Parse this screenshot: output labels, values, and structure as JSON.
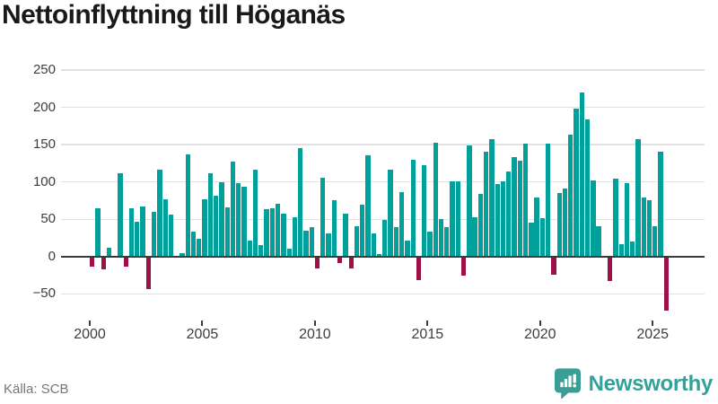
{
  "title": "Nettoinflyttning till Höganäs",
  "source": "Källa: SCB",
  "brand": {
    "name": "Newsworthy",
    "color": "#33a09a"
  },
  "chart_data": {
    "type": "bar",
    "title": "Nettoinflyttning till Höganäs",
    "xlabel": "",
    "ylabel": "",
    "grid": true,
    "legend": "none",
    "y_ticks": [
      250,
      200,
      150,
      100,
      50,
      0,
      -50
    ],
    "ylim": [
      -85,
      260
    ],
    "x_tick_labels": [
      "2000",
      "2005",
      "2010",
      "2015",
      "2020",
      "2025"
    ],
    "period_frequency": "quarterly",
    "start_period": "2000 Q1",
    "end_period": "2025 Q3",
    "palette": {
      "positive": "#00a19a",
      "negative": "#9e1048",
      "zero_axis": "#3a3a3a",
      "gridline": "#e1e1e1",
      "tick_label": "#3d3d3d"
    },
    "values": [
      -13,
      65,
      -17,
      12,
      0,
      112,
      -14,
      65,
      47,
      67,
      -43,
      60,
      117,
      77,
      56,
      0,
      5,
      137,
      34,
      24,
      77,
      112,
      82,
      100,
      66,
      127,
      99,
      94,
      22,
      116,
      16,
      63,
      65,
      71,
      57,
      11,
      53,
      145,
      35,
      40,
      -16,
      106,
      31,
      76,
      -9,
      57,
      -16,
      41,
      69,
      136,
      31,
      3,
      49,
      117,
      39,
      86,
      21,
      130,
      -31,
      123,
      33,
      153,
      50,
      40,
      101,
      101,
      -26,
      149,
      53,
      84,
      141,
      158,
      97,
      101,
      114,
      133,
      128,
      151,
      45,
      79,
      52,
      151,
      -24,
      85,
      91,
      163,
      198,
      220,
      184,
      102,
      41,
      0,
      -33,
      104,
      17,
      99,
      20,
      157,
      79,
      75,
      41,
      140,
      -73
    ]
  }
}
